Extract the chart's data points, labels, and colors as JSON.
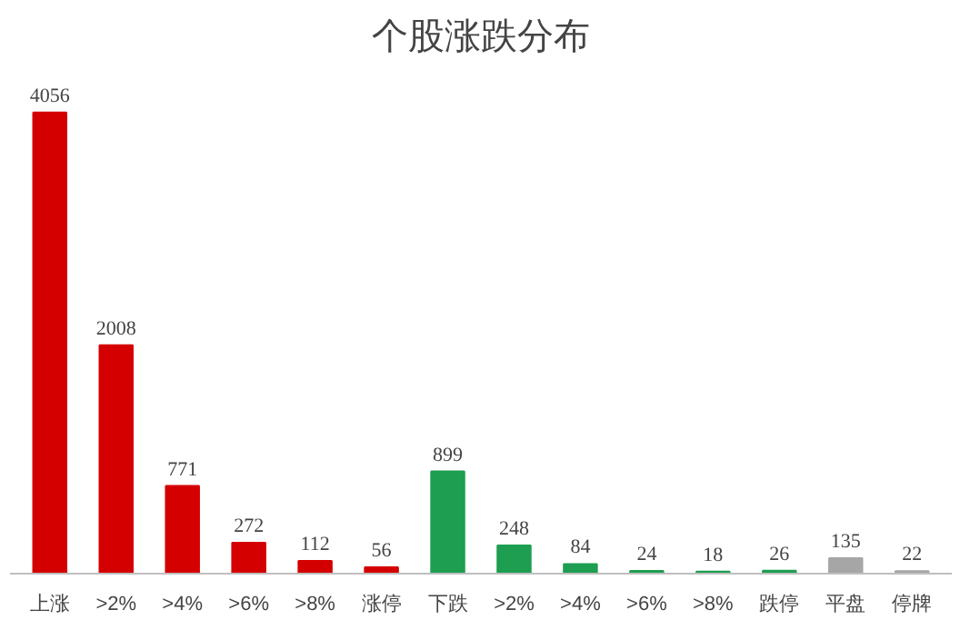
{
  "chart_data": {
    "type": "bar",
    "title": "个股涨跌分布",
    "categories": [
      "上涨",
      ">2%",
      ">4%",
      ">6%",
      ">8%",
      "涨停",
      "下跌",
      ">2%",
      ">4%",
      ">6%",
      ">8%",
      "跌停",
      "平盘",
      "停牌"
    ],
    "values": [
      4056,
      2008,
      771,
      272,
      112,
      56,
      899,
      248,
      84,
      24,
      18,
      26,
      135,
      22
    ],
    "colors": [
      "#d40000",
      "#d40000",
      "#d40000",
      "#d40000",
      "#d40000",
      "#d40000",
      "#1e9e50",
      "#1e9e50",
      "#1e9e50",
      "#1e9e50",
      "#1e9e50",
      "#1e9e50",
      "#a6a6a6",
      "#a6a6a6"
    ],
    "data_labels": true,
    "grid": false
  }
}
